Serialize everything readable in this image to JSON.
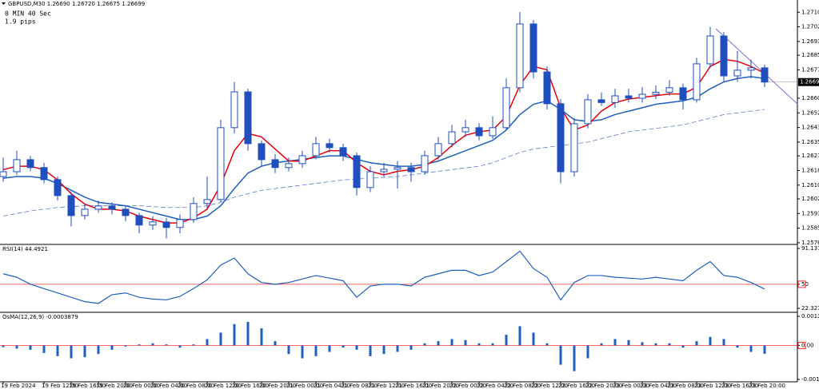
{
  "header": {
    "symbol_line": "GBPUSD,M30  1.26690 1.26720 1.26675 1.26699",
    "timer": "0 MIN 40 Sec",
    "spread": "1.9 pips"
  },
  "chart_data": [
    {
      "type": "candlestick",
      "categories": [
        "19 Feb 2024",
        null,
        null,
        "19 Feb 12:00",
        null,
        "19 Feb 16:00",
        null,
        "19 Feb 20:00",
        null,
        "20 Feb 00:00",
        null,
        "20 Feb 04:00",
        null,
        "20 Feb 08:00",
        null,
        "20 Feb 12:00",
        null,
        "20 Feb 16:00",
        null,
        "20 Feb 20:00",
        null,
        "21 Feb 00:00",
        null,
        "21 Feb 04:00",
        null,
        "21 Feb 08:00",
        null,
        "21 Feb 12:00",
        null,
        "21 Feb 16:00",
        null,
        "21 Feb 20:00",
        null,
        "22 Feb 00:00",
        null,
        "22 Feb 04:00",
        null,
        "22 Feb 08:00",
        null,
        "22 Feb 12:00",
        null,
        "22 Feb 16:00",
        null,
        "22 Feb 20:00",
        null,
        "23 Feb 00:00",
        null,
        "23 Feb 04:00",
        null,
        "23 Feb 08:00",
        null,
        "23 Feb 12:00",
        null,
        "23 Feb 16:00",
        null,
        "23 Feb 20:00",
        null
      ],
      "open": [
        1.2615,
        1.26178,
        1.26248,
        1.26202,
        1.26132,
        1.26039,
        1.25923,
        1.2596,
        1.25979,
        1.2596,
        1.25923,
        1.25868,
        1.25886,
        1.25854,
        1.259,
        1.25993,
        1.26016,
        1.26434,
        1.26642,
        1.26341,
        1.26248,
        1.26202,
        1.26225,
        1.26271,
        1.26341,
        1.26318,
        1.26271,
        1.26086,
        1.26178,
        1.26192,
        1.26202,
        1.26178,
        1.26271,
        1.26341,
        1.2641,
        1.26434,
        1.26387,
        1.26434,
        1.26666,
        1.27037,
        1.26758,
        1.26573,
        1.26178,
        1.26457,
        1.26596,
        1.2658,
        1.26619,
        1.26605,
        1.26628,
        1.2664,
        1.26666,
        1.26596,
        1.26805,
        1.26967,
        1.26735,
        1.26768,
        1.26782
      ],
      "high": [
        1.2626,
        1.263,
        1.2627,
        1.2623,
        1.2615,
        1.2606,
        1.2599,
        1.2601,
        1.26,
        1.2598,
        1.2594,
        1.2592,
        1.2591,
        1.2593,
        1.2603,
        1.2615,
        1.2648,
        1.267,
        1.2666,
        1.2636,
        1.2628,
        1.2626,
        1.263,
        1.2638,
        1.2637,
        1.2634,
        1.2629,
        1.2621,
        1.2623,
        1.2624,
        1.2623,
        1.263,
        1.2638,
        1.2645,
        1.2648,
        1.2646,
        1.265,
        1.2672,
        1.27106,
        1.2706,
        1.2679,
        1.266,
        1.2649,
        1.2663,
        1.2664,
        1.2666,
        1.2666,
        1.2667,
        1.2668,
        1.2671,
        1.2669,
        1.2684,
        1.2702,
        1.2699,
        1.2688,
        1.2683,
        1.268
      ],
      "low": [
        1.2612,
        1.2616,
        1.2618,
        1.2611,
        1.2601,
        1.2586,
        1.259,
        1.2594,
        1.2593,
        1.2589,
        1.2582,
        1.2584,
        1.2579,
        1.2582,
        1.2588,
        1.2596,
        1.26,
        1.264,
        1.263,
        1.2621,
        1.2617,
        1.2618,
        1.262,
        1.2625,
        1.2629,
        1.2624,
        1.2604,
        1.2606,
        1.2615,
        1.2608,
        1.2612,
        1.2616,
        1.2625,
        1.2632,
        1.2638,
        1.2636,
        1.2637,
        1.2642,
        1.2664,
        1.2672,
        1.2654,
        1.2611,
        1.2615,
        1.2643,
        1.2656,
        1.2655,
        1.2658,
        1.2658,
        1.266,
        1.2662,
        1.2654,
        1.2658,
        1.2678,
        1.267,
        1.267,
        1.2672,
        1.2667
      ],
      "close": [
        1.26178,
        1.26248,
        1.26202,
        1.26132,
        1.26039,
        1.25923,
        1.2596,
        1.25979,
        1.2596,
        1.25923,
        1.25868,
        1.25886,
        1.25854,
        1.259,
        1.25993,
        1.26016,
        1.26434,
        1.26642,
        1.26341,
        1.26248,
        1.26202,
        1.26225,
        1.26271,
        1.26341,
        1.26318,
        1.26271,
        1.26086,
        1.26178,
        1.26192,
        1.26202,
        1.26178,
        1.26271,
        1.26341,
        1.2641,
        1.26434,
        1.26387,
        1.26434,
        1.26666,
        1.27037,
        1.26758,
        1.26573,
        1.26178,
        1.26457,
        1.26596,
        1.2658,
        1.26619,
        1.26605,
        1.26628,
        1.2664,
        1.26666,
        1.26596,
        1.26805,
        1.26967,
        1.26735,
        1.26768,
        1.26782,
        1.26699
      ],
      "candle_color": "#1f4fbf",
      "series": [
        {
          "color": "#5b7fc4",
          "style": "dashed",
          "values": [
            1.2592,
            1.25935,
            1.2595,
            1.2596,
            1.2597,
            1.25975,
            1.2598,
            1.2598,
            1.2598,
            1.2598,
            1.2598,
            1.25975,
            1.2597,
            1.2597,
            1.2597,
            1.2598,
            1.26,
            1.2603,
            1.2605,
            1.2607,
            1.2608,
            1.2609,
            1.261,
            1.2611,
            1.2612,
            1.2613,
            1.26135,
            1.2614,
            1.26145,
            1.2615,
            1.2616,
            1.2617,
            1.2618,
            1.2619,
            1.262,
            1.2621,
            1.2623,
            1.2626,
            1.2629,
            1.2631,
            1.2632,
            1.2633,
            1.2634,
            1.2635,
            1.2637,
            1.2639,
            1.2641,
            1.2642,
            1.2643,
            1.2644,
            1.2645,
            1.2647,
            1.2649,
            1.2651,
            1.2652,
            1.2653,
            1.2654
          ]
        },
        {
          "color": "#1f5fbf",
          "style": "solid",
          "values": [
            1.2614,
            1.2615,
            1.2615,
            1.2614,
            1.2611,
            1.2607,
            1.2603,
            1.26,
            1.2599,
            1.2598,
            1.2596,
            1.2594,
            1.2592,
            1.259,
            1.259,
            1.2592,
            1.2598,
            1.2608,
            1.2617,
            1.2621,
            1.2623,
            1.2624,
            1.2625,
            1.2626,
            1.2627,
            1.2627,
            1.2625,
            1.2623,
            1.2622,
            1.2621,
            1.2621,
            1.2622,
            1.2624,
            1.2627,
            1.263,
            1.2633,
            1.2636,
            1.2642,
            1.2651,
            1.2657,
            1.2659,
            1.2654,
            1.2648,
            1.2647,
            1.2648,
            1.2651,
            1.2653,
            1.2655,
            1.2657,
            1.2658,
            1.2659,
            1.2661,
            1.2666,
            1.267,
            1.2672,
            1.2673,
            1.2672
          ]
        },
        {
          "color": "#e8000b",
          "style": "solid",
          "values": [
            1.2619,
            1.2621,
            1.2621,
            1.2619,
            1.2613,
            1.2605,
            1.2599,
            1.2596,
            1.2596,
            1.2595,
            1.2592,
            1.259,
            1.2588,
            1.2588,
            1.2591,
            1.2596,
            1.261,
            1.263,
            1.264,
            1.2638,
            1.2631,
            1.2624,
            1.2624,
            1.2627,
            1.263,
            1.263,
            1.2623,
            1.2618,
            1.2616,
            1.2618,
            1.2619,
            1.2621,
            1.2626,
            1.2633,
            1.2639,
            1.2641,
            1.2642,
            1.265,
            1.2668,
            1.2679,
            1.2677,
            1.2655,
            1.2642,
            1.2645,
            1.2653,
            1.2658,
            1.266,
            1.2661,
            1.2662,
            1.2663,
            1.2663,
            1.2667,
            1.2679,
            1.2683,
            1.2682,
            1.2679,
            1.2675
          ]
        }
      ],
      "ylim": [
        1.2576,
        1.27176
      ],
      "yticks": [
        1.27105,
        {
          "value": 1.2702,
          "label": "1.27020"
        },
        1.26935,
        1.26855,
        {
          "value": 1.2677,
          "label": "1.26770"
        },
        1.26605,
        {
          "value": 1.2652,
          "label": "1.26520"
        },
        1.26435,
        {
          "value": 1.2635,
          "label": "1.26350"
        },
        {
          "value": 1.2627,
          "label": "1.26270"
        },
        1.26185,
        {
          "value": 1.261,
          "label": "1.26100"
        },
        {
          "value": 1.2602,
          "label": "1.26020"
        },
        1.25935,
        {
          "value": 1.2585,
          "label": "1.25850"
        },
        1.25765
      ],
      "last_price": 1.26699
    },
    {
      "type": "line",
      "title": "RSI(14) 44.4921",
      "color": "#1f5fbf",
      "values": [
        62,
        58,
        50,
        45,
        40,
        35,
        30,
        28,
        38,
        40,
        35,
        33,
        32,
        36,
        45,
        55,
        72,
        80,
        62,
        52,
        50,
        52,
        56,
        60,
        57,
        54,
        35,
        48,
        50,
        50,
        48,
        58,
        62,
        66,
        66,
        60,
        64,
        76,
        88,
        68,
        58,
        32,
        52,
        60,
        60,
        58,
        57,
        56,
        58,
        56,
        54,
        66,
        76,
        60,
        58,
        52,
        44.4921
      ],
      "ylim": [
        22.3274,
        91.1377
      ],
      "yticks": [
        22.3274,
        50,
        91.1377
      ],
      "level": 50,
      "level_color": "#ff3030"
    },
    {
      "type": "bar",
      "title": "OsMA(12,26,9) -0.0003879",
      "color": "#1f5fbf",
      "values": [
        -8e-05,
        -0.00015,
        -0.0002,
        -0.00035,
        -0.0005,
        -0.0006,
        -0.00055,
        -0.0004,
        -0.0002,
        -5e-05,
        5e-05,
        0.0001,
        5e-05,
        -0.0001,
        5e-05,
        0.0003,
        0.0006,
        0.001,
        0.0011,
        0.0008,
        0.0002,
        -0.0004,
        -0.0006,
        -0.0005,
        -0.0003,
        -0.0001,
        -0.0002,
        -0.0005,
        -0.0004,
        -0.0003,
        -0.0002,
        0.0001,
        0.0002,
        0.0003,
        0.00025,
        0.0001,
        0.0001,
        0.0005,
        0.0009,
        0.0006,
        0.0001,
        -0.0009,
        -0.0012,
        -0.0006,
        0.0001,
        0.0003,
        0.00025,
        0.00015,
        0.0001,
        0.0001,
        -0.0001,
        0.0002,
        0.0004,
        0.0003,
        -0.0001,
        -0.0003,
        -0.0003879
      ],
      "ylim": [
        -0.001587,
        0.0013615
      ],
      "yticks": [
        -0.001587,
        {
          "value": 0,
          "label": "0.00"
        },
        0.0013615
      ],
      "level_color": "#ff3030"
    }
  ]
}
